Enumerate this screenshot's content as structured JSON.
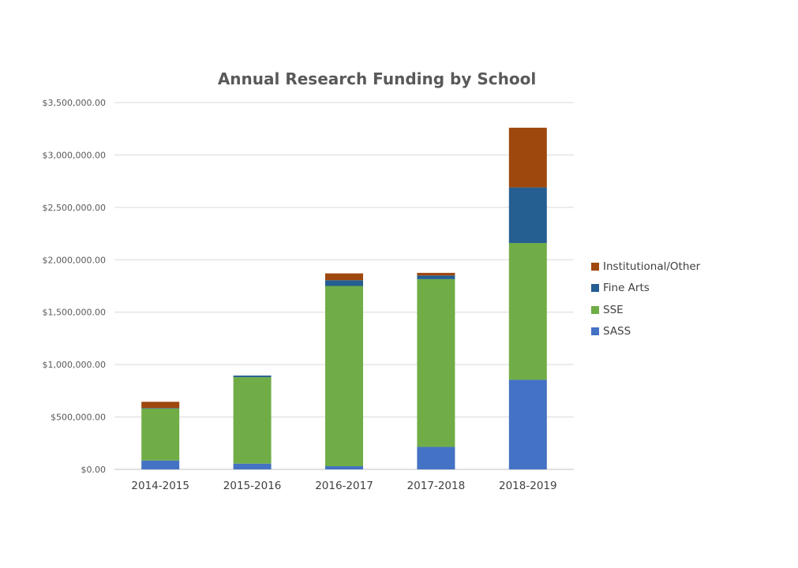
{
  "chart_data": {
    "type": "bar",
    "stacked": true,
    "title": "Annual Research Funding by School",
    "xlabel": "",
    "ylabel": "",
    "categories": [
      "2014-2015",
      "2015-2016",
      "2016-2017",
      "2017-2018",
      "2018-2019"
    ],
    "series": [
      {
        "name": "SASS",
        "color": "#4472C4",
        "values": [
          85000,
          55000,
          30000,
          215000,
          855000
        ]
      },
      {
        "name": "SSE",
        "color": "#70AD47",
        "values": [
          495000,
          825000,
          1720000,
          1600000,
          1305000
        ]
      },
      {
        "name": "Fine Arts",
        "color": "#255E91",
        "values": [
          5000,
          15000,
          55000,
          35000,
          530000
        ]
      },
      {
        "name": "Institutional/Other",
        "color": "#9E480E",
        "values": [
          60000,
          0,
          65000,
          25000,
          570000
        ]
      }
    ],
    "ylim": [
      0,
      3500000
    ],
    "yticks": [
      0,
      500000,
      1000000,
      1500000,
      2000000,
      2500000,
      3000000,
      3500000
    ],
    "ytick_labels": [
      "$0.00",
      "$500,000.00",
      "$1,000,000.00",
      "$1,500,000.00",
      "$2,000,000.00",
      "$2,500,000.00",
      "$3,000,000.00",
      "$3,500,000.00"
    ],
    "grid": true,
    "legend_position": "right",
    "legend_order": [
      "Institutional/Other",
      "Fine Arts",
      "SSE",
      "SASS"
    ]
  }
}
